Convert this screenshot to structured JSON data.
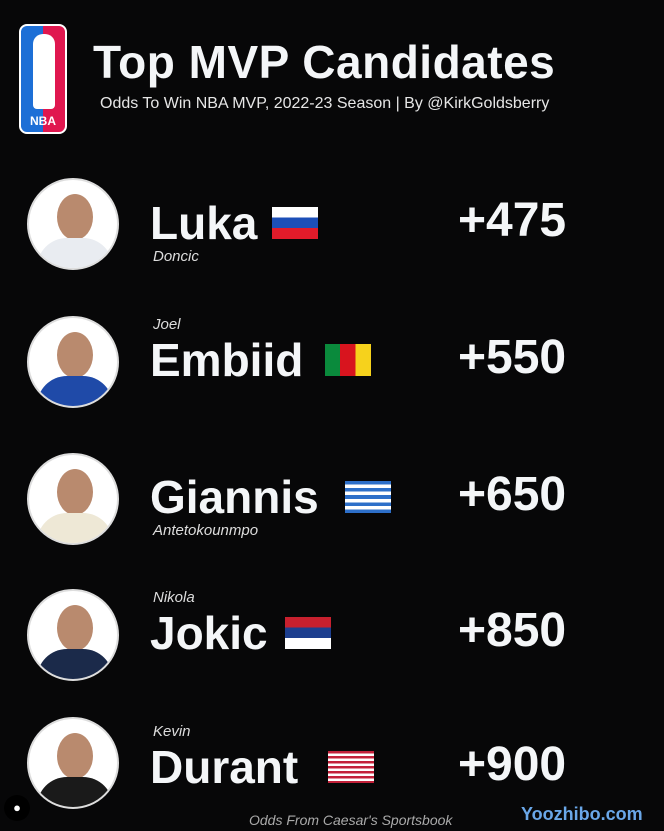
{
  "header": {
    "logo_text": "NBA",
    "title": "Top MVP Candidates",
    "subtitle": "Odds To Win NBA MVP, 2022-23 Season | By @KirkGoldsberry"
  },
  "players": [
    {
      "name": "Luka",
      "secondary": "Doncic",
      "secondary_position": "below",
      "odds": "+475",
      "flag": "slovenia",
      "jersey_color": "#e9ecf1"
    },
    {
      "name": "Embiid",
      "secondary": "Joel",
      "secondary_position": "above",
      "odds": "+550",
      "flag": "cameroon",
      "jersey_color": "#1f4aa8"
    },
    {
      "name": "Giannis",
      "secondary": "Antetokounmpo",
      "secondary_position": "below",
      "odds": "+650",
      "flag": "greece",
      "jersey_color": "#eee8d6"
    },
    {
      "name": "Jokic",
      "secondary": "Nikola",
      "secondary_position": "above",
      "odds": "+850",
      "flag": "serbia",
      "jersey_color": "#1b2a4a"
    },
    {
      "name": "Durant",
      "secondary": "Kevin",
      "secondary_position": "above",
      "odds": "+900",
      "flag": "usa",
      "jersey_color": "#1a1a1a"
    }
  ],
  "footer": {
    "source": "Odds From Caesar's Sportsbook",
    "watermark": "Yoozhibo.com"
  }
}
